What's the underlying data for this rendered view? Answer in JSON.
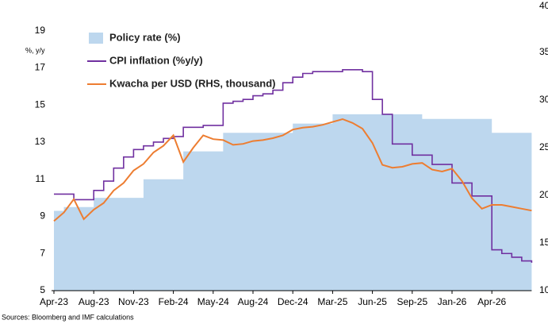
{
  "chart_data": {
    "type": "line",
    "y_axis_label": "%, y/y",
    "source": "Sources: Bloomberg and IMF calculations",
    "categories": [
      "Apr-23",
      null,
      null,
      null,
      "Aug-23",
      null,
      null,
      null,
      "Nov-23",
      null,
      null,
      null,
      "Feb-24",
      null,
      null,
      null,
      "May-24",
      null,
      null,
      null,
      "Aug-24",
      null,
      null,
      null,
      "Dec-24",
      null,
      null,
      null,
      "Mar-25",
      null,
      null,
      null,
      "Jun-25",
      null,
      null,
      null,
      "Sep-25",
      null,
      null,
      null,
      "Jan-26",
      null,
      null,
      null,
      "Apr-26",
      null,
      null,
      null,
      null
    ],
    "ylim": [
      5,
      20.4
    ],
    "yticks": [
      5,
      7,
      9,
      11,
      13,
      15,
      17,
      19
    ],
    "y2lim": [
      10,
      40
    ],
    "y2ticks": [
      10,
      15,
      20,
      25,
      30,
      35,
      40
    ],
    "series": [
      {
        "name": "Policy rate (%)",
        "color": "#bdd7ee",
        "kind": "area",
        "step": true,
        "values": [
          9.3,
          9.5,
          9.5,
          9.5,
          10,
          10,
          10,
          10,
          10,
          11,
          11,
          11,
          11,
          12.5,
          12.5,
          12.5,
          12.5,
          13.5,
          13.5,
          13.5,
          13.5,
          13.5,
          13.5,
          13.5,
          14,
          14,
          14,
          14,
          14.5,
          14.5,
          14.5,
          14.5,
          14.5,
          14.5,
          14.5,
          14.5,
          14.5,
          14.25,
          14.25,
          14.25,
          14.25,
          14.25,
          14.25,
          14.25,
          13.5,
          13.5,
          13.5,
          13.5,
          13.25
        ]
      },
      {
        "name": "CPI inflation (%y/y)",
        "color": "#7030a0",
        "kind": "line",
        "step": true,
        "values": [
          10.2,
          10.2,
          9.9,
          9.9,
          10.4,
          10.9,
          11.6,
          12.2,
          12.6,
          12.8,
          13.0,
          13.2,
          13.3,
          13.8,
          13.8,
          13.9,
          13.9,
          15.1,
          15.2,
          15.3,
          15.5,
          15.6,
          15.8,
          16.2,
          16.5,
          16.7,
          16.8,
          16.8,
          16.8,
          16.9,
          16.9,
          16.8,
          15.3,
          14.5,
          12.9,
          12.9,
          12.3,
          12.3,
          11.8,
          11.8,
          10.8,
          10.8,
          10.1,
          10.1,
          7.2,
          7.0,
          6.8,
          6.6,
          6.5
        ]
      },
      {
        "name": "Kwacha per USD (RHS, thousand)",
        "color": "#ed7d31",
        "kind": "line",
        "step": false,
        "axis": "y2",
        "values": [
          17.3,
          18.2,
          19.6,
          17.5,
          18.5,
          19.2,
          20.5,
          21.3,
          22.6,
          23.3,
          24.5,
          25.2,
          26.3,
          23.5,
          25.0,
          26.3,
          25.9,
          25.8,
          25.3,
          25.4,
          25.7,
          25.8,
          26.0,
          26.3,
          26.9,
          27.1,
          27.2,
          27.4,
          27.7,
          28.0,
          27.6,
          27.0,
          25.5,
          23.2,
          22.9,
          23.0,
          23.3,
          23.4,
          22.7,
          22.5,
          22.8,
          21.5,
          19.7,
          18.6,
          19.0,
          19.0,
          18.8,
          18.6,
          18.4
        ]
      }
    ]
  }
}
